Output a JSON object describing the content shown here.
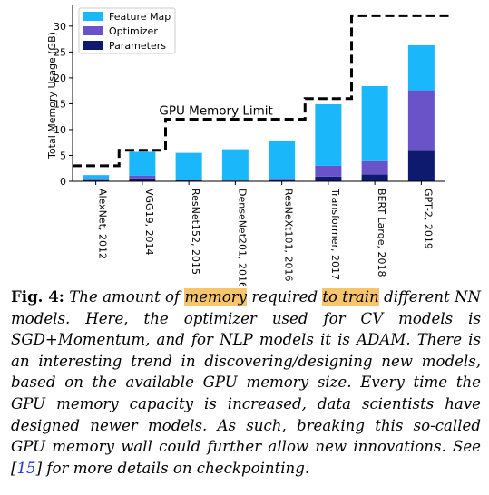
{
  "chart_data": {
    "type": "bar",
    "stacked": true,
    "categories": [
      "AlexNet, 2012",
      "VGG19, 2014",
      "ResNet152, 2015",
      "DenseNet201, 2016",
      "ResNeXt101, 2016",
      "Transformer, 2017",
      "BERT Large, 2018",
      "GPT-2, 2019"
    ],
    "series": [
      {
        "name": "Parameters",
        "color": "#0d1a6e",
        "values": [
          0.25,
          0.55,
          0.25,
          0.1,
          0.35,
          0.9,
          1.3,
          5.9
        ]
      },
      {
        "name": "Optimizer",
        "color": "#6a52c9",
        "values": [
          0.25,
          0.55,
          0.1,
          0.1,
          0.15,
          2.1,
          2.6,
          11.7
        ]
      },
      {
        "name": "Feature Map",
        "color": "#1ab8fb",
        "values": [
          0.7,
          4.6,
          5.15,
          6.0,
          7.4,
          11.9,
          14.5,
          8.7
        ]
      }
    ],
    "gpu_memory_limit": [
      3,
      6,
      12,
      12,
      12,
      16,
      32,
      32
    ],
    "gpu_limit_label": "GPU Memory Limit",
    "ylabel": "Total Memory Usage (GB)",
    "xlabel": "",
    "ylim": [
      0,
      34
    ],
    "yticks": [
      0,
      5,
      10,
      15,
      20,
      25,
      30
    ],
    "legend_position": "top-left",
    "grid": false
  },
  "caption": {
    "label": "Fig. 4:",
    "t1": " The amount of ",
    "hl1": "memory",
    "t2": " required ",
    "hl2": "to train",
    "t3": " different NN models. Here, the optimizer used for CV models is SGD+Momentum, and for NLP models it is ADAM. There is an interesting trend in discovering/designing new models, based on the available GPU memory size. Every time the GPU memory capacity is increased, data scientists have designed newer models. As such, breaking this so-called GPU memory wall could further allow new innovations. See [",
    "ref": "15",
    "t4": "] for more details on checkpointing."
  }
}
